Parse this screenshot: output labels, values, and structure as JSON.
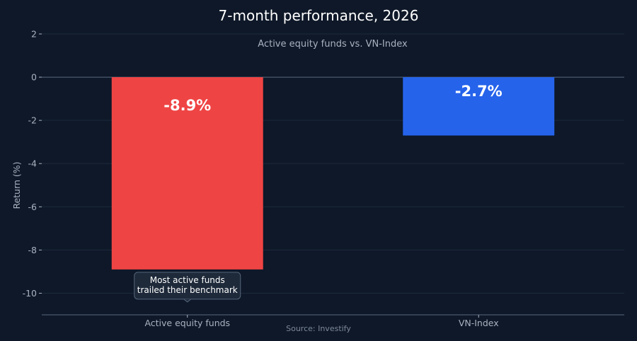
{
  "chart_data": {
    "type": "bar",
    "title": "7-month performance, 2026",
    "subtitle": "Active equity funds vs. VN-Index",
    "xlabel": "",
    "ylabel": "Return (%)",
    "categories": [
      "Active equity funds",
      "VN-Index"
    ],
    "values": [
      -8.9,
      -2.7
    ],
    "data_labels": [
      "-8.9%",
      "-2.7%"
    ],
    "colors": [
      "#ef4444",
      "#2563eb"
    ],
    "ylim": [
      -11,
      2
    ],
    "yticks": [
      2,
      0,
      -2,
      -4,
      -6,
      -8,
      -10
    ],
    "grid": true,
    "annotation": {
      "lines": [
        "Most active funds",
        "trailed their benchmark"
      ],
      "category": "Active equity funds"
    },
    "source": "Source: Investify"
  },
  "colors": {
    "background": "#0e1828",
    "grid": "#1c2a3d",
    "zero_line": "#5a6a80",
    "text": "#ffffff",
    "muted": "#a8b2c0"
  }
}
